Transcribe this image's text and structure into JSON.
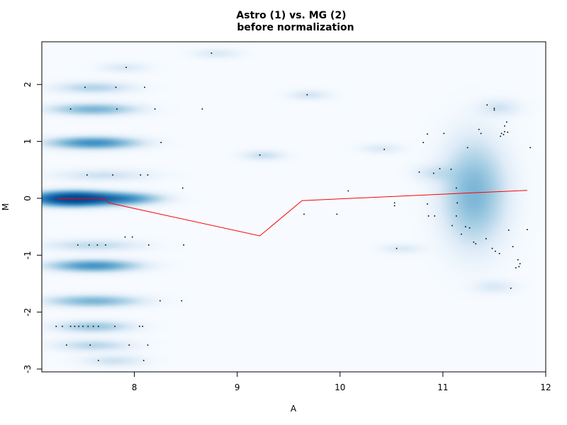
{
  "chart_data": {
    "type": "scatter",
    "subtype": "smooth-density-MA-plot",
    "title": "Astro (1) vs. MG (2)",
    "subtitle": "before normalization",
    "xlabel": "A",
    "ylabel": "M",
    "xlim": [
      7.1,
      12.0
    ],
    "ylim": [
      -3.05,
      2.75
    ],
    "xticks": [
      8,
      9,
      10,
      11,
      12
    ],
    "yticks": [
      -3,
      -2,
      -1,
      0,
      1,
      2
    ],
    "grid": false,
    "legend": "none",
    "colors": {
      "density_low": "#f7fbff",
      "density_high": "#08306b",
      "points": "#000000",
      "lowess_line": "#ff0000"
    },
    "density_blobs": [
      {
        "x": 7.4,
        "y": 0.0,
        "w": 2.2,
        "spread_x": 0.55,
        "spread_y": 0.08
      },
      {
        "x": 7.9,
        "y": 0.0,
        "w": 0.8,
        "spread_x": 0.5,
        "spread_y": 0.07
      },
      {
        "x": 7.6,
        "y": 0.98,
        "w": 0.9,
        "spread_x": 0.6,
        "spread_y": 0.07
      },
      {
        "x": 7.6,
        "y": -1.18,
        "w": 0.85,
        "spread_x": 0.6,
        "spread_y": 0.07
      },
      {
        "x": 7.6,
        "y": 1.57,
        "w": 0.55,
        "spread_x": 0.6,
        "spread_y": 0.07
      },
      {
        "x": 7.6,
        "y": -1.8,
        "w": 0.55,
        "spread_x": 0.65,
        "spread_y": 0.07
      },
      {
        "x": 7.6,
        "y": -0.82,
        "w": 0.25,
        "spread_x": 0.7,
        "spread_y": 0.07
      },
      {
        "x": 7.7,
        "y": 0.41,
        "w": 0.2,
        "spread_x": 0.7,
        "spread_y": 0.07
      },
      {
        "x": 7.6,
        "y": -2.25,
        "w": 0.4,
        "spread_x": 0.55,
        "spread_y": 0.07
      },
      {
        "x": 7.6,
        "y": 1.95,
        "w": 0.3,
        "spread_x": 0.55,
        "spread_y": 0.07
      },
      {
        "x": 7.6,
        "y": -2.58,
        "w": 0.28,
        "spread_x": 0.55,
        "spread_y": 0.07
      },
      {
        "x": 7.8,
        "y": -2.85,
        "w": 0.2,
        "spread_x": 0.45,
        "spread_y": 0.07
      },
      {
        "x": 7.9,
        "y": 2.3,
        "w": 0.15,
        "spread_x": 0.35,
        "spread_y": 0.06
      },
      {
        "x": 8.8,
        "y": 2.55,
        "w": 0.15,
        "spread_x": 0.35,
        "spread_y": 0.06
      },
      {
        "x": 9.25,
        "y": 0.76,
        "w": 0.22,
        "spread_x": 0.3,
        "spread_y": 0.06
      },
      {
        "x": 9.7,
        "y": 1.82,
        "w": 0.18,
        "spread_x": 0.3,
        "spread_y": 0.06
      },
      {
        "x": 10.4,
        "y": 0.88,
        "w": 0.15,
        "spread_x": 0.3,
        "spread_y": 0.06
      },
      {
        "x": 10.6,
        "y": -0.88,
        "w": 0.15,
        "spread_x": 0.3,
        "spread_y": 0.06
      },
      {
        "x": 11.3,
        "y": 0.1,
        "w": 0.55,
        "spread_x": 0.45,
        "spread_y": 0.6
      },
      {
        "x": 11.55,
        "y": 1.6,
        "w": 0.18,
        "spread_x": 0.3,
        "spread_y": 0.1
      },
      {
        "x": 11.5,
        "y": -1.55,
        "w": 0.15,
        "spread_x": 0.3,
        "spread_y": 0.08
      },
      {
        "x": 10.9,
        "y": 0.45,
        "w": 0.15,
        "spread_x": 0.3,
        "spread_y": 0.1
      }
    ],
    "points": [
      [
        7.24,
        -2.25
      ],
      [
        7.3,
        -2.25
      ],
      [
        7.38,
        -2.25
      ],
      [
        7.42,
        -2.25
      ],
      [
        7.46,
        -2.25
      ],
      [
        7.5,
        -2.25
      ],
      [
        7.55,
        -2.25
      ],
      [
        7.6,
        -2.25
      ],
      [
        7.65,
        -2.25
      ],
      [
        7.81,
        -2.25
      ],
      [
        8.05,
        -2.25
      ],
      [
        8.08,
        -2.25
      ],
      [
        7.34,
        -2.58
      ],
      [
        7.57,
        -2.58
      ],
      [
        7.95,
        -2.58
      ],
      [
        8.13,
        -2.58
      ],
      [
        7.65,
        -2.85
      ],
      [
        8.09,
        -2.85
      ],
      [
        7.45,
        -0.82
      ],
      [
        7.56,
        -0.82
      ],
      [
        7.64,
        -0.82
      ],
      [
        7.72,
        -0.82
      ],
      [
        7.91,
        -0.68
      ],
      [
        7.98,
        -0.68
      ],
      [
        8.14,
        -0.82
      ],
      [
        8.48,
        -0.82
      ],
      [
        7.54,
        0.41
      ],
      [
        7.79,
        0.41
      ],
      [
        8.06,
        0.41
      ],
      [
        8.13,
        0.41
      ],
      [
        8.47,
        0.18
      ],
      [
        7.52,
        1.95
      ],
      [
        7.82,
        1.95
      ],
      [
        8.1,
        1.95
      ],
      [
        7.38,
        1.57
      ],
      [
        7.83,
        1.57
      ],
      [
        8.2,
        1.57
      ],
      [
        8.66,
        1.57
      ],
      [
        7.92,
        2.3
      ],
      [
        8.75,
        2.55
      ],
      [
        8.26,
        0.98
      ],
      [
        8.25,
        -1.8
      ],
      [
        8.46,
        -1.8
      ],
      [
        9.22,
        0.76
      ],
      [
        9.68,
        1.82
      ],
      [
        9.65,
        -0.28
      ],
      [
        9.97,
        -0.28
      ],
      [
        10.08,
        0.13
      ],
      [
        10.43,
        0.86
      ],
      [
        10.53,
        -0.08
      ],
      [
        10.53,
        -0.13
      ],
      [
        10.55,
        -0.88
      ],
      [
        10.77,
        0.46
      ],
      [
        10.81,
        0.98
      ],
      [
        10.85,
        1.13
      ],
      [
        10.85,
        -0.1
      ],
      [
        10.86,
        -0.31
      ],
      [
        10.91,
        0.44
      ],
      [
        10.92,
        -0.31
      ],
      [
        10.97,
        0.52
      ],
      [
        11.01,
        1.14
      ],
      [
        11.08,
        0.51
      ],
      [
        11.09,
        -0.48
      ],
      [
        11.13,
        -0.31
      ],
      [
        11.13,
        0.18
      ],
      [
        11.14,
        -0.08
      ],
      [
        11.18,
        -0.63
      ],
      [
        11.22,
        -0.5
      ],
      [
        11.24,
        0.89
      ],
      [
        11.26,
        -0.52
      ],
      [
        11.3,
        -0.77
      ],
      [
        11.32,
        -0.8
      ],
      [
        11.35,
        1.21
      ],
      [
        11.37,
        1.14
      ],
      [
        11.42,
        -0.71
      ],
      [
        11.48,
        -0.88
      ],
      [
        11.51,
        -0.93
      ],
      [
        11.43,
        1.64
      ],
      [
        11.5,
        1.58
      ],
      [
        11.5,
        1.55
      ],
      [
        11.56,
        1.09
      ],
      [
        11.55,
        -0.97
      ],
      [
        11.57,
        1.14
      ],
      [
        11.59,
        1.12
      ],
      [
        11.6,
        1.17
      ],
      [
        11.6,
        1.27
      ],
      [
        11.62,
        1.34
      ],
      [
        11.63,
        1.16
      ],
      [
        11.64,
        -0.56
      ],
      [
        11.66,
        -1.58
      ],
      [
        11.68,
        -0.85
      ],
      [
        11.71,
        -1.22
      ],
      [
        11.73,
        -1.08
      ],
      [
        11.75,
        -1.15
      ],
      [
        11.74,
        -1.2
      ],
      [
        11.82,
        -0.55
      ],
      [
        11.85,
        0.89
      ]
    ],
    "lowess_line": [
      [
        7.25,
        -0.01
      ],
      [
        7.7,
        0.0
      ],
      [
        7.75,
        -0.08
      ],
      [
        9.22,
        -0.66
      ],
      [
        9.63,
        -0.04
      ],
      [
        11.82,
        0.14
      ]
    ]
  }
}
